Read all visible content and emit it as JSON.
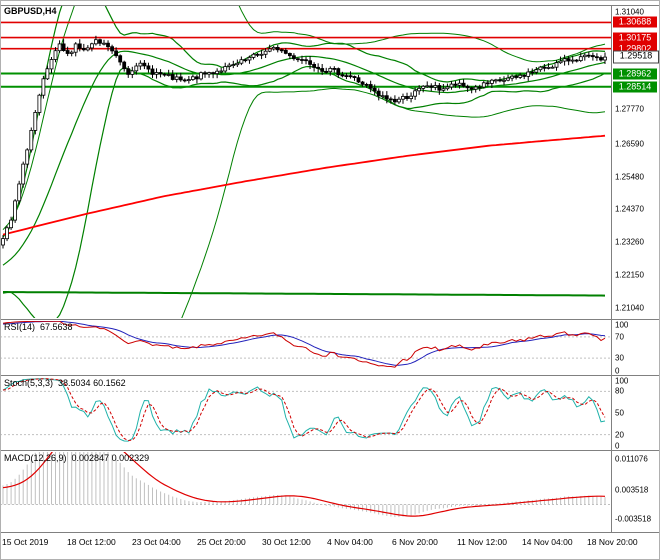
{
  "window": {
    "symbol_label": "GBPUSD,H4"
  },
  "colors": {
    "background": "#ffffff",
    "candle_up": "#ffffff",
    "candle_down": "#000000",
    "candle_outline": "#000000",
    "band_green": "#008000",
    "ma_red": "#ff0000",
    "level_resistance": "#e00000",
    "level_support": "#009000",
    "rsi_line": "#cc0000",
    "rsi_ma": "#2222bb",
    "stoch_k": "#20b2aa",
    "stoch_d": "#d00000",
    "macd_hist": "#c0c0c0",
    "macd_signal": "#e00000",
    "divider": "#808080",
    "dotted_level": "#c0c0c0",
    "axis_text": "#000000"
  },
  "timeline": {
    "labels": [
      "15 Oct 2019",
      "18 Oct 12:00",
      "23 Oct 04:00",
      "25 Oct 20:00",
      "30 Oct 12:00",
      "4 Nov 04:00",
      "6 Nov 20:00",
      "11 Nov 12:00",
      "14 Nov 04:00",
      "18 Nov 20:00"
    ]
  },
  "chart_data": [
    {
      "type": "candlestick",
      "panel": "main",
      "symbol": "GBPUSD",
      "timeframe": "H4",
      "bars": 150,
      "pre_bars": 60,
      "noise_seed": 7,
      "noise_amp": 0.0009,
      "last_close": 1.29518,
      "price_range": {
        "max": 1.31243,
        "min": 1.20702
      },
      "y_axis_ticks": [
        {
          "label": "1.31040",
          "value": 1.3104
        },
        {
          "label": "1.27770",
          "value": 1.2777
        },
        {
          "label": "1.26590",
          "value": 1.2659
        },
        {
          "label": "1.25480",
          "value": 1.2548
        },
        {
          "label": "1.24370",
          "value": 1.2437
        },
        {
          "label": "1.23260",
          "value": 1.2326
        },
        {
          "label": "1.22150",
          "value": 1.2215
        },
        {
          "label": "1.21040",
          "value": 1.2104
        }
      ],
      "levels": [
        {
          "label": "1.30688",
          "value": 1.30688,
          "kind": "resistance"
        },
        {
          "label": "1.30175",
          "value": 1.30175,
          "kind": "resistance"
        },
        {
          "label": "1.29802",
          "value": 1.29802,
          "kind": "resistance"
        },
        {
          "label": "1.29518",
          "value": 1.29518,
          "kind": "price"
        },
        {
          "label": "1.28962",
          "value": 1.28962,
          "kind": "support"
        },
        {
          "label": "1.28514",
          "value": 1.28514,
          "kind": "support"
        }
      ],
      "close_waypoints": [
        [
          -60,
          1.2
        ],
        [
          -45,
          1.206
        ],
        [
          -30,
          1.2125
        ],
        [
          -18,
          1.2185
        ],
        [
          -8,
          1.2255
        ],
        [
          -3,
          1.2305
        ],
        [
          0,
          1.2335
        ],
        [
          2,
          1.24
        ],
        [
          4,
          1.252
        ],
        [
          6,
          1.2645
        ],
        [
          8,
          1.2762
        ],
        [
          10,
          1.287
        ],
        [
          12,
          1.2942
        ],
        [
          14,
          1.2988
        ],
        [
          16,
          1.2958
        ],
        [
          18,
          1.2996
        ],
        [
          20,
          1.2972
        ],
        [
          23,
          1.3002
        ],
        [
          26,
          1.2988
        ],
        [
          28,
          1.2952
        ],
        [
          31,
          1.2898
        ],
        [
          33,
          1.293
        ],
        [
          37,
          1.2902
        ],
        [
          40,
          1.2888
        ],
        [
          45,
          1.2868
        ],
        [
          49,
          1.289
        ],
        [
          53,
          1.2906
        ],
        [
          57,
          1.2922
        ],
        [
          60,
          1.294
        ],
        [
          64,
          1.2966
        ],
        [
          68,
          1.2982
        ],
        [
          71,
          1.2956
        ],
        [
          75,
          1.294
        ],
        [
          79,
          1.2912
        ],
        [
          82,
          1.2904
        ],
        [
          86,
          1.2886
        ],
        [
          90,
          1.2854
        ],
        [
          93,
          1.282
        ],
        [
          97,
          1.2804
        ],
        [
          101,
          1.2824
        ],
        [
          105,
          1.2856
        ],
        [
          108,
          1.2844
        ],
        [
          112,
          1.2858
        ],
        [
          116,
          1.2846
        ],
        [
          119,
          1.2858
        ],
        [
          123,
          1.2872
        ],
        [
          127,
          1.2882
        ],
        [
          130,
          1.2898
        ],
        [
          134,
          1.2916
        ],
        [
          138,
          1.2934
        ],
        [
          141,
          1.2946
        ],
        [
          145,
          1.2952
        ],
        [
          147,
          1.2942
        ],
        [
          149,
          1.29518
        ]
      ],
      "overlays": {
        "bb_fast": {
          "period": 20,
          "deviation": 2.0
        },
        "bb_slow": {
          "period": 55,
          "deviation": 2.5
        },
        "red_ma_waypoints": [
          [
            0,
            1.2352
          ],
          [
            20,
            1.242
          ],
          [
            40,
            1.2482
          ],
          [
            60,
            1.2532
          ],
          [
            80,
            1.2578
          ],
          [
            100,
            1.2618
          ],
          [
            120,
            1.2652
          ],
          [
            135,
            1.267
          ],
          [
            149,
            1.2686
          ]
        ],
        "green_flat_waypoints": [
          [
            0,
            1.2158
          ],
          [
            75,
            1.2152
          ],
          [
            149,
            1.2146
          ]
        ]
      }
    },
    {
      "type": "line",
      "panel": "rsi",
      "label": "RSI(14)",
      "value_label": "67.5638",
      "range": [
        0,
        100
      ],
      "levels": [
        30,
        70
      ],
      "axis_ticks": [
        {
          "label": "100",
          "value": 100
        },
        {
          "label": "70",
          "value": 70
        },
        {
          "label": "30",
          "value": 30
        },
        {
          "label": "0",
          "value": 0
        }
      ]
    },
    {
      "type": "line",
      "panel": "stochastic",
      "label": "Stoch(5,3,3)",
      "value_label": "38.5034 60.1562",
      "range": [
        0,
        100
      ],
      "levels": [
        20,
        80
      ],
      "axis_ticks": [
        {
          "label": "100",
          "value": 100
        },
        {
          "label": "80",
          "value": 80
        },
        {
          "label": "50",
          "value": 50
        },
        {
          "label": "20",
          "value": 20
        },
        {
          "label": "0",
          "value": 0
        }
      ]
    },
    {
      "type": "macd",
      "panel": "macd",
      "label": "MACD(12,26,9)",
      "value_label": "0.002847 0.002329",
      "fast": 12,
      "slow": 26,
      "signal": 9,
      "range": {
        "max": 0.0129,
        "min": -0.0065
      },
      "axis_ticks": [
        {
          "label": "0.011076",
          "value": 0.011076
        },
        {
          "label": "0.003518",
          "value": 0.003518
        },
        {
          "label": "-0.003518",
          "value": -0.003518
        }
      ]
    }
  ]
}
